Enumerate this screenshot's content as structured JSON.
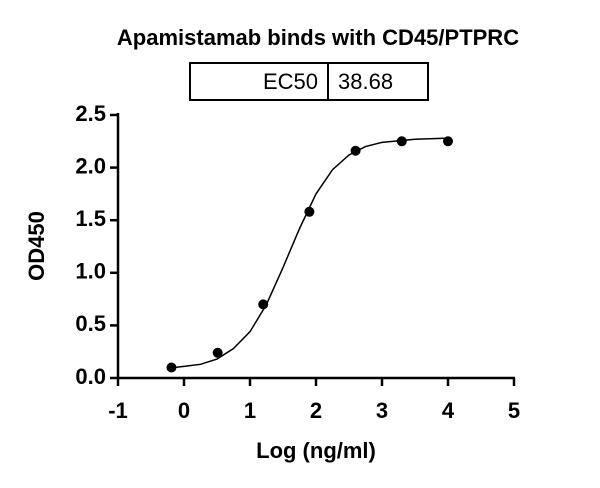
{
  "chart_data": {
    "type": "scatter",
    "title": "Apamistamab binds with CD45/PTPRC",
    "annotation": {
      "label": "EC50",
      "value": 38.68
    },
    "x_label": "Log (ng/ml)",
    "y_label": "OD450",
    "points": {
      "x": [
        -0.19,
        0.51,
        1.2,
        1.9,
        2.6,
        3.3,
        4.0
      ],
      "y": [
        0.1,
        0.24,
        0.7,
        1.58,
        2.16,
        2.25,
        2.25
      ],
      "color": "#000000"
    },
    "fit": {
      "x": [
        -0.2,
        0,
        0.25,
        0.5,
        0.75,
        1.0,
        1.25,
        1.5,
        1.75,
        2.0,
        2.25,
        2.5,
        2.75,
        3.0,
        3.5,
        4.0
      ],
      "y": [
        0.096,
        0.11,
        0.13,
        0.18,
        0.28,
        0.44,
        0.7,
        1.05,
        1.42,
        1.75,
        1.98,
        2.12,
        2.2,
        2.24,
        2.27,
        2.28
      ],
      "color": "#000000"
    },
    "xlim": [
      -1,
      5
    ],
    "xticks": [
      -1,
      0,
      1,
      2,
      3,
      4,
      5
    ],
    "ylim": [
      0,
      2.5
    ],
    "yticks": [
      {
        "value": 0,
        "label": "0.0"
      },
      0.5,
      {
        "value": 1,
        "label": "1.0"
      },
      1.5,
      {
        "value": 2,
        "label": "2.0"
      },
      2.5
    ]
  }
}
